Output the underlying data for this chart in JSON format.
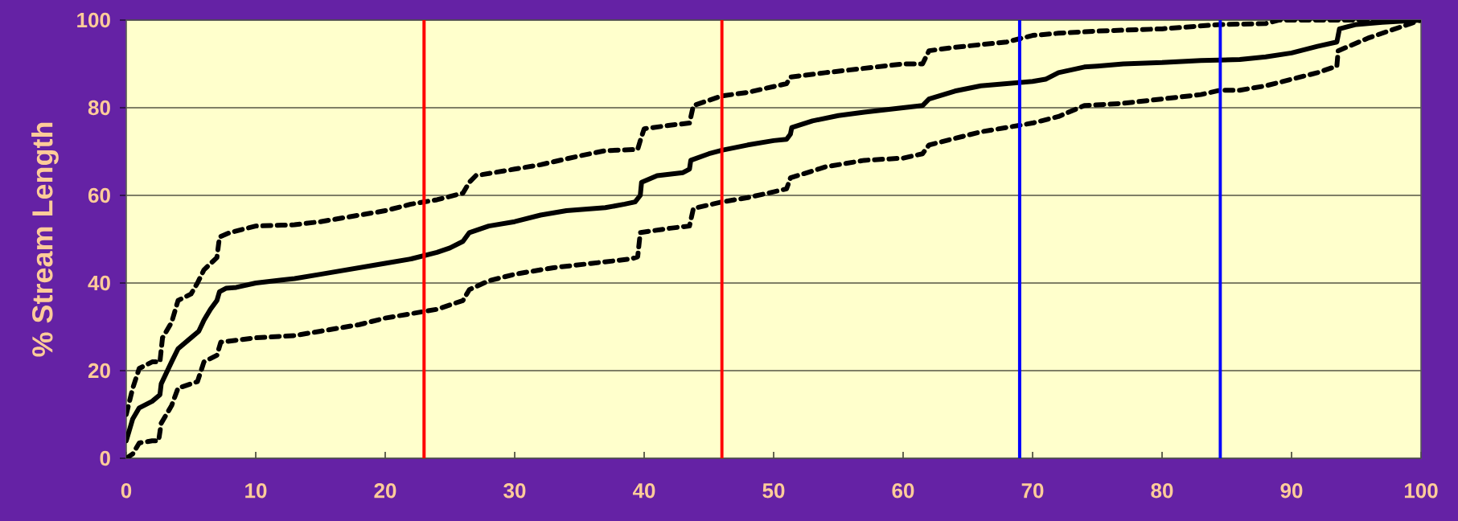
{
  "chart_data": {
    "type": "line",
    "ylabel": "% Stream Length",
    "xlim": [
      0,
      100
    ],
    "ylim": [
      0,
      100
    ],
    "xticks": [
      0,
      10,
      20,
      30,
      40,
      50,
      60,
      70,
      80,
      90,
      100
    ],
    "yticks": [
      0,
      20,
      40,
      60,
      80,
      100
    ],
    "grid": "y",
    "marker": "none",
    "series": [
      {
        "color": "#000000",
        "line_style": "solid",
        "x": [
          0,
          0.5,
          1,
          2,
          2.6,
          2.7,
          3.5,
          4,
          5,
          5.6,
          6,
          6.5,
          7,
          7.2,
          7.7,
          8.5,
          10,
          12,
          13,
          15,
          20,
          22,
          24,
          25,
          26,
          26.5,
          28,
          30,
          32,
          34,
          37,
          38.5,
          39.3,
          39.7,
          39.8,
          41,
          43,
          43.5,
          43.6,
          45,
          46,
          48,
          50,
          51,
          51.3,
          51.4,
          53,
          55,
          57,
          60,
          61.5,
          62,
          64,
          66,
          68,
          70,
          71,
          72,
          74,
          75,
          77,
          80,
          83,
          86,
          88,
          90,
          92,
          93.5,
          93.6,
          93.7,
          95,
          97,
          100
        ],
        "values": [
          4,
          9,
          11.5,
          13,
          14.5,
          17,
          22,
          25,
          27.5,
          29,
          31.5,
          34,
          36,
          38,
          38.8,
          39,
          40,
          40.7,
          41,
          42,
          44.5,
          45.5,
          47,
          48,
          49.5,
          51.5,
          53,
          54,
          55.5,
          56.5,
          57.2,
          58,
          58.5,
          60,
          63,
          64.5,
          65.2,
          66,
          68,
          69.5,
          70.3,
          71.5,
          72.5,
          72.8,
          74,
          75.5,
          77,
          78.2,
          79,
          80,
          80.5,
          82,
          83.8,
          85,
          85.5,
          86,
          86.5,
          88,
          89.3,
          89.5,
          90,
          90.3,
          90.8,
          91,
          91.6,
          92.5,
          94,
          95,
          96.5,
          98,
          99,
          99.5,
          100
        ]
      },
      {
        "color": "#000000",
        "line_style": "dashed",
        "x": [
          0,
          0.5,
          1,
          2,
          2.6,
          2.8,
          3.5,
          4,
          5,
          5.5,
          6,
          7,
          7.2,
          8,
          10,
          12,
          13,
          15,
          17,
          20,
          22,
          24,
          26,
          26.5,
          27,
          30,
          32,
          35,
          37,
          39.5,
          39.7,
          40,
          42,
          43.5,
          43.8,
          46,
          48,
          51,
          51.3,
          54,
          57,
          60,
          61.5,
          62,
          64,
          68,
          70,
          72,
          75,
          80,
          84.5,
          88,
          89,
          100
        ],
        "values": [
          10,
          16,
          20.5,
          22,
          22,
          27.5,
          31,
          36,
          37.5,
          40,
          43,
          45.8,
          50.5,
          51.5,
          53,
          53.2,
          53.3,
          54,
          55,
          56.5,
          58,
          59,
          60.5,
          63,
          64.5,
          66,
          67,
          69,
          70.2,
          70.5,
          72.5,
          75.2,
          76,
          76.5,
          80.5,
          82.7,
          83.5,
          85.5,
          87,
          88,
          89,
          90,
          90,
          93,
          93.8,
          95,
          96.5,
          97,
          97.5,
          98,
          99,
          99.2,
          100,
          100
        ]
      },
      {
        "color": "#000000",
        "line_style": "dashed",
        "x": [
          0,
          0.5,
          1,
          2,
          2.5,
          2.7,
          3.5,
          4,
          5,
          5.5,
          6,
          7,
          7.3,
          10,
          13,
          15,
          18,
          20,
          22,
          24,
          26,
          26.5,
          28,
          30,
          33,
          36,
          39,
          39.5,
          39.7,
          42,
          43.5,
          43.8,
          46,
          48,
          50,
          51,
          51.3,
          54,
          57,
          60,
          61.5,
          62,
          64,
          66,
          68,
          70,
          72,
          74,
          77,
          80,
          83,
          84.5,
          86,
          88,
          90,
          92,
          93.5,
          93.6,
          96,
          98,
          100
        ],
        "values": [
          0,
          1,
          3.5,
          4,
          4,
          8,
          12,
          16,
          17,
          17.5,
          22,
          23.5,
          26.5,
          27.5,
          28,
          29,
          30.5,
          32,
          33,
          34,
          36,
          38.5,
          40.5,
          42,
          43.5,
          44.5,
          45.5,
          46,
          51.5,
          52.5,
          53,
          57,
          58.5,
          59.5,
          60.8,
          61.5,
          64,
          66.5,
          68,
          68.5,
          69.5,
          71.5,
          73,
          74.5,
          75.5,
          76.5,
          78,
          80.5,
          81,
          82,
          83,
          84,
          84,
          85,
          86.5,
          88,
          89.5,
          93,
          96,
          98,
          100
        ]
      }
    ],
    "ref_lines": [
      {
        "axis": "x",
        "value": 23,
        "color": "#ff0000"
      },
      {
        "axis": "x",
        "value": 46,
        "color": "#ff0000"
      },
      {
        "axis": "x",
        "value": 69,
        "color": "#0000ff"
      },
      {
        "axis": "x",
        "value": 84.5,
        "color": "#0000ff"
      }
    ]
  }
}
